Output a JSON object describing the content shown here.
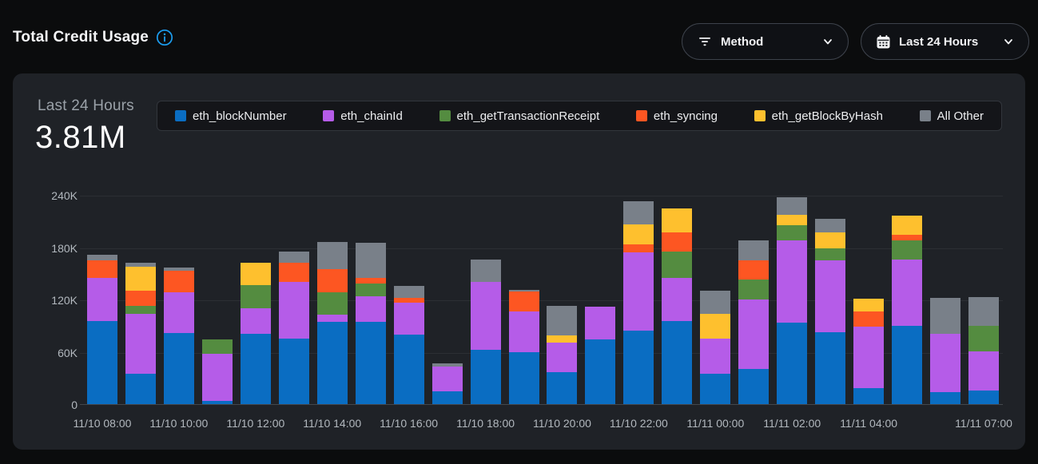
{
  "header": {
    "title": "Total Credit Usage",
    "filters": {
      "method_label": "Method",
      "range_label": "Last 24 Hours"
    }
  },
  "card": {
    "period_label": "Last 24 Hours",
    "total_value": "3.81M"
  },
  "colors": {
    "page_bg": "#0b0c0d",
    "card_bg": "#1f2227",
    "info_icon_blue": "#1c9ef0",
    "axis_text": "#b2b8be",
    "series_blue": "#0a6dc2",
    "series_purple": "#b55ce8",
    "series_green": "#548c40",
    "series_orange": "#fd5622",
    "series_yellow": "#fec02e",
    "series_gray": "#798089"
  },
  "chart_data": {
    "type": "bar",
    "variant": "stacked",
    "title": "Total Credit Usage",
    "unit": "credits",
    "ylim": [
      0,
      240000
    ],
    "grid": true,
    "yticks": [
      {
        "value": 0,
        "label": "0"
      },
      {
        "value": 60000,
        "label": "60K"
      },
      {
        "value": 120000,
        "label": "120K"
      },
      {
        "value": 180000,
        "label": "180K"
      },
      {
        "value": 240000,
        "label": "240K"
      }
    ],
    "categories": [
      "11/10 08:00",
      "11/10 09:00",
      "11/10 10:00",
      "11/10 11:00",
      "11/10 12:00",
      "11/10 13:00",
      "11/10 14:00",
      "11/10 15:00",
      "11/10 16:00",
      "11/10 17:00",
      "11/10 18:00",
      "11/10 19:00",
      "11/10 20:00",
      "11/10 21:00",
      "11/10 22:00",
      "11/10 23:00",
      "11/11 00:00",
      "11/11 01:00",
      "11/11 02:00",
      "11/11 03:00",
      "11/11 04:00",
      "11/11 05:00",
      "11/11 06:00",
      "11/11 07:00"
    ],
    "xticks": [
      {
        "index": 0,
        "label": "11/10 08:00"
      },
      {
        "index": 2,
        "label": "11/10 10:00"
      },
      {
        "index": 4,
        "label": "11/10 12:00"
      },
      {
        "index": 6,
        "label": "11/10 14:00"
      },
      {
        "index": 8,
        "label": "11/10 16:00"
      },
      {
        "index": 10,
        "label": "11/10 18:00"
      },
      {
        "index": 12,
        "label": "11/10 20:00"
      },
      {
        "index": 14,
        "label": "11/10 22:00"
      },
      {
        "index": 16,
        "label": "11/11 00:00"
      },
      {
        "index": 18,
        "label": "11/11 02:00"
      },
      {
        "index": 20,
        "label": "11/11 04:00"
      },
      {
        "index": 23,
        "label": "11/11 07:00"
      }
    ],
    "series": [
      {
        "name": "eth_blockNumber",
        "color": "#0a6dc2",
        "values": [
          96000,
          35300,
          82700,
          4600,
          81200,
          75700,
          95000,
          95600,
          80300,
          16000,
          63400,
          60400,
          37400,
          75100,
          84900,
          95900,
          35800,
          41300,
          94100,
          83300,
          19000,
          91000,
          14400,
          16900
        ]
      },
      {
        "name": "eth_chainId",
        "color": "#b55ce8",
        "values": [
          50000,
          68900,
          46900,
          53600,
          30000,
          65800,
          8300,
          29100,
          36700,
          27600,
          77500,
          46800,
          33700,
          37400,
          90300,
          50200,
          39900,
          79700,
          94300,
          82700,
          70500,
          75300,
          66800,
          44400
        ]
      },
      {
        "name": "eth_getTransactionReceipt",
        "color": "#548c40",
        "values": [
          0,
          9200,
          0,
          16900,
          26100,
          0,
          26000,
          14700,
          0,
          0,
          0,
          0,
          0,
          0,
          0,
          30000,
          0,
          23000,
          17400,
          13800,
          0,
          22100,
          0,
          29100
        ]
      },
      {
        "name": "eth_syncing",
        "color": "#fd5622",
        "values": [
          20000,
          17400,
          24500,
          0,
          0,
          21500,
          26300,
          6100,
          6100,
          0,
          0,
          23000,
          0,
          0,
          9200,
          21500,
          0,
          22000,
          0,
          0,
          17700,
          6800,
          0,
          0
        ]
      },
      {
        "name": "eth_getBlockByHash",
        "color": "#fec02e",
        "values": [
          0,
          27600,
          0,
          0,
          25700,
          0,
          0,
          0,
          0,
          0,
          0,
          0,
          8600,
          0,
          22300,
          27500,
          28500,
          0,
          12300,
          17800,
          14400,
          22300,
          0,
          0
        ]
      },
      {
        "name": "All Other",
        "color": "#798089",
        "values": [
          6500,
          4600,
          3700,
          0,
          0,
          13100,
          31300,
          40700,
          13200,
          3900,
          26000,
          2100,
          33700,
          0,
          26700,
          0,
          26600,
          22400,
          20200,
          15900,
          0,
          0,
          41400,
          33700
        ]
      }
    ],
    "legend_position": "top"
  }
}
